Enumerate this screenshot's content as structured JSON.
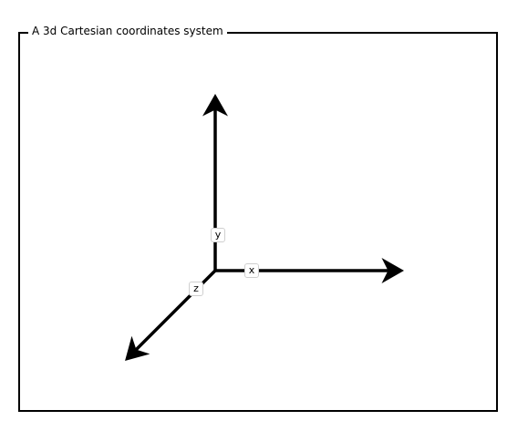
{
  "panel": {
    "title": "A 3d Cartesian coordinates system"
  },
  "axes": {
    "x_label": "x",
    "y_label": "y",
    "z_label": "z"
  },
  "colors": {
    "stroke": "#000000",
    "background": "#ffffff",
    "label_border": "#cfcfcf"
  }
}
